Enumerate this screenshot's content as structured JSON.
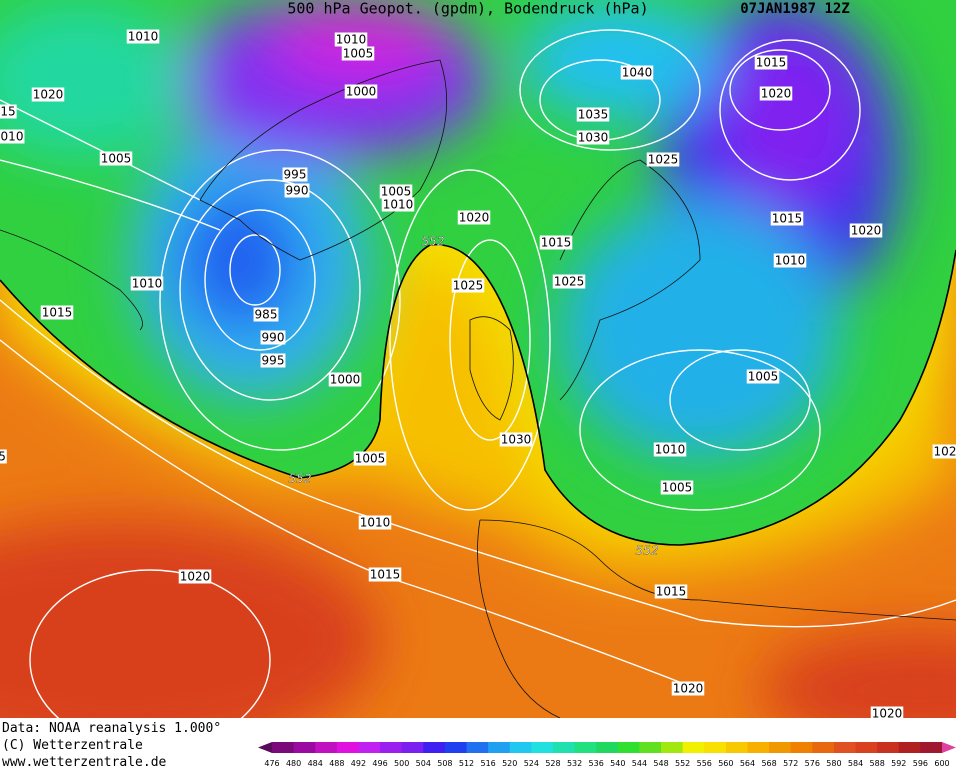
{
  "header": {
    "title": "500 hPa Geopot. (gpdm), Bodendruck (hPa)",
    "date": "07JAN1987 12Z"
  },
  "isobar_labels": [
    "1010",
    "1010",
    "1005",
    "1040",
    "1015",
    "1020",
    "1000",
    "1020",
    "1035",
    "1030",
    "1025",
    "1005",
    "995",
    "990",
    "1005",
    "1010",
    "1020",
    "1015",
    "1015",
    "1020",
    "1010",
    "1025",
    "1025",
    "1010",
    "1015",
    "985",
    "990",
    "995",
    "1000",
    "1005",
    "1005",
    "1030",
    "1010",
    "1005",
    "1010",
    "1015",
    "1020",
    "1015",
    "1020",
    "1020",
    "15",
    "010",
    "5",
    "102"
  ],
  "geopotential_labels": [
    "552",
    "552",
    "552"
  ],
  "footer": [
    "Data: NOAA reanalysis 1.000°",
    "(C) Wetterzentrale",
    "www.wetterzentrale.de"
  ],
  "colorbar": {
    "ticks": [
      476,
      480,
      484,
      488,
      492,
      496,
      500,
      504,
      508,
      512,
      516,
      520,
      524,
      528,
      532,
      536,
      540,
      544,
      548,
      552,
      556,
      560,
      564,
      568,
      572,
      576,
      580,
      584,
      588,
      592,
      596,
      600
    ],
    "colors": [
      "#5a0a5a",
      "#7a0a7a",
      "#9a0aa0",
      "#c010c0",
      "#e010e0",
      "#c020f0",
      "#9a20f0",
      "#7a20f0",
      "#4020f0",
      "#2040f0",
      "#2070f0",
      "#20a0f0",
      "#20c8f0",
      "#20e0e0",
      "#20e0b0",
      "#20e080",
      "#20d860",
      "#30e030",
      "#60e020",
      "#a0e810",
      "#f0f000",
      "#f8e000",
      "#f8c800",
      "#f8b000",
      "#f09800",
      "#f08000",
      "#e86810",
      "#e05020",
      "#d84020",
      "#c83020",
      "#b02020",
      "#a01830",
      "#e040a0"
    ]
  }
}
